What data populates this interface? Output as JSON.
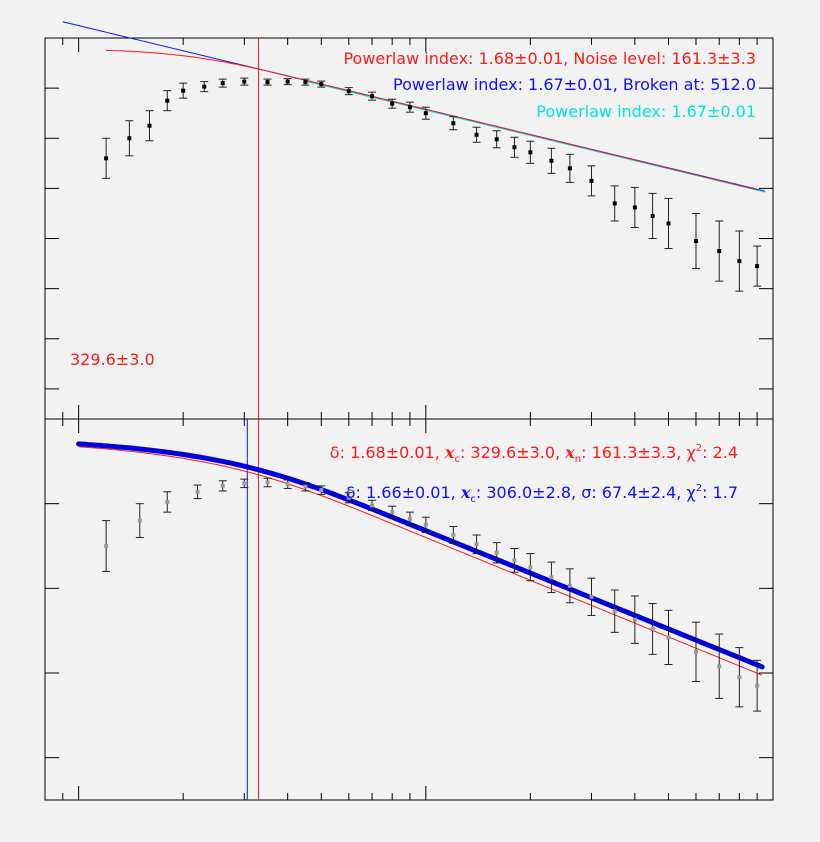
{
  "colors": {
    "background": "#f2f2f2",
    "axes": "#000000",
    "red": "#ff1a1a",
    "blue": "#1010ff",
    "cyan": "#00e6e6",
    "thick_blue": "#0000dd",
    "data_gray": "#9a9a9a"
  },
  "chart_data": [
    {
      "type": "scatter",
      "panel": "top",
      "scale": "log-log",
      "axis_labels_printed": false,
      "x_range": [
        80,
        10000
      ],
      "log10_y_range": [
        -8.6,
        -1.0
      ],
      "annotations": {
        "red_fit": "Powerlaw index: 1.68±0.01, Noise level: 161.3±3.3",
        "blue_fit": "Powerlaw index: 1.67±0.01, Broken at: 512.0",
        "cyan_fit": "Powerlaw index: 1.67±0.01",
        "cutoff_label": "329.6±3.0"
      },
      "cutoff_x": 329.6,
      "fits": {
        "red": {
          "index": 1.68,
          "noise_level": 161.3
        },
        "blue": {
          "index": 1.67,
          "broken_at": 512.0
        },
        "cyan": {
          "index": 1.67
        }
      },
      "data_points": [
        {
          "x": 120,
          "log10_y": -3.4,
          "err": 0.4
        },
        {
          "x": 140,
          "log10_y": -3.0,
          "err": 0.35
        },
        {
          "x": 160,
          "log10_y": -2.75,
          "err": 0.3
        },
        {
          "x": 180,
          "log10_y": -2.25,
          "err": 0.2
        },
        {
          "x": 200,
          "log10_y": -2.05,
          "err": 0.15
        },
        {
          "x": 230,
          "log10_y": -1.97,
          "err": 0.1
        },
        {
          "x": 260,
          "log10_y": -1.9,
          "err": 0.08
        },
        {
          "x": 300,
          "log10_y": -1.87,
          "err": 0.07
        },
        {
          "x": 350,
          "log10_y": -1.88,
          "err": 0.06
        },
        {
          "x": 400,
          "log10_y": -1.87,
          "err": 0.06
        },
        {
          "x": 450,
          "log10_y": -1.88,
          "err": 0.06
        },
        {
          "x": 500,
          "log10_y": -1.92,
          "err": 0.06
        },
        {
          "x": 600,
          "log10_y": -2.06,
          "err": 0.07
        },
        {
          "x": 700,
          "log10_y": -2.16,
          "err": 0.08
        },
        {
          "x": 800,
          "log10_y": -2.31,
          "err": 0.09
        },
        {
          "x": 900,
          "log10_y": -2.38,
          "err": 0.1
        },
        {
          "x": 1000,
          "log10_y": -2.5,
          "err": 0.12
        },
        {
          "x": 1200,
          "log10_y": -2.7,
          "err": 0.13
        },
        {
          "x": 1400,
          "log10_y": -2.93,
          "err": 0.15
        },
        {
          "x": 1600,
          "log10_y": -3.02,
          "err": 0.17
        },
        {
          "x": 1800,
          "log10_y": -3.18,
          "err": 0.2
        },
        {
          "x": 2000,
          "log10_y": -3.28,
          "err": 0.22
        },
        {
          "x": 2300,
          "log10_y": -3.45,
          "err": 0.25
        },
        {
          "x": 2600,
          "log10_y": -3.6,
          "err": 0.28
        },
        {
          "x": 3000,
          "log10_y": -3.85,
          "err": 0.3
        },
        {
          "x": 3500,
          "log10_y": -4.3,
          "err": 0.35
        },
        {
          "x": 4000,
          "log10_y": -4.38,
          "err": 0.4
        },
        {
          "x": 4500,
          "log10_y": -4.55,
          "err": 0.45
        },
        {
          "x": 5000,
          "log10_y": -4.7,
          "err": 0.5
        },
        {
          "x": 6000,
          "log10_y": -5.05,
          "err": 0.55
        },
        {
          "x": 7000,
          "log10_y": -5.25,
          "err": 0.6
        },
        {
          "x": 8000,
          "log10_y": -5.45,
          "err": 0.6
        },
        {
          "x": 9000,
          "log10_y": -5.55,
          "err": 0.4
        }
      ]
    },
    {
      "type": "scatter",
      "panel": "bottom",
      "scale": "log-log",
      "axis_labels_printed": false,
      "x_range": [
        80,
        10000
      ],
      "log10_y_range": [
        -5.5,
        -1.0
      ],
      "annotations": {
        "red_fit": "δ: 1.68±0.01, xc: 329.6±3.0, xn: 161.3±3.3, χ²: 2.4",
        "blue_fit": "δ: 1.66±0.01, xc: 306.0±2.8, σ:  67.4±2.4, χ²: 1.7"
      },
      "red_fit_parts": {
        "delta": "δ: 1.68±0.01, ",
        "xc_symbol": "x",
        "xc_sub": "c",
        "xc_value": ": 329.6±3.0, ",
        "xn_symbol": "x",
        "xn_sub": "n",
        "xn_value": ": 161.3±3.3, ",
        "chi_symbol": "χ",
        "chi_sup": "2",
        "chi_value": ": 2.4"
      },
      "blue_fit_parts": {
        "delta": "δ: 1.66±0.01, ",
        "xc_symbol": "x",
        "xc_sub": "c",
        "xc_value": ": 306.0±2.8, ",
        "sigma": "σ:  67.4±2.4, ",
        "chi_symbol": "χ",
        "chi_sup": "2",
        "chi_value": ": 1.7"
      },
      "cutoff_x_red": 329.6,
      "cutoff_x_blue": 306.0,
      "fits": {
        "red": {
          "delta": 1.68,
          "xc": 329.6,
          "xn": 161.3,
          "chi2": 2.4
        },
        "blue": {
          "delta": 1.66,
          "xc": 306.0,
          "sigma": 67.4,
          "chi2": 1.7
        }
      },
      "data_points": [
        {
          "x": 120,
          "log10_y": -2.5,
          "err": 0.3
        },
        {
          "x": 150,
          "log10_y": -2.2,
          "err": 0.2
        },
        {
          "x": 180,
          "log10_y": -1.98,
          "err": 0.12
        },
        {
          "x": 220,
          "log10_y": -1.86,
          "err": 0.08
        },
        {
          "x": 260,
          "log10_y": -1.79,
          "err": 0.06
        },
        {
          "x": 300,
          "log10_y": -1.76,
          "err": 0.05
        },
        {
          "x": 350,
          "log10_y": -1.75,
          "err": 0.05
        },
        {
          "x": 400,
          "log10_y": -1.77,
          "err": 0.05
        },
        {
          "x": 450,
          "log10_y": -1.8,
          "err": 0.05
        },
        {
          "x": 500,
          "log10_y": -1.84,
          "err": 0.05
        },
        {
          "x": 600,
          "log10_y": -1.93,
          "err": 0.06
        },
        {
          "x": 700,
          "log10_y": -2.02,
          "err": 0.06
        },
        {
          "x": 800,
          "log10_y": -2.1,
          "err": 0.07
        },
        {
          "x": 900,
          "log10_y": -2.18,
          "err": 0.08
        },
        {
          "x": 1000,
          "log10_y": -2.25,
          "err": 0.09
        },
        {
          "x": 1200,
          "log10_y": -2.37,
          "err": 0.1
        },
        {
          "x": 1400,
          "log10_y": -2.48,
          "err": 0.11
        },
        {
          "x": 1600,
          "log10_y": -2.58,
          "err": 0.12
        },
        {
          "x": 1800,
          "log10_y": -2.67,
          "err": 0.14
        },
        {
          "x": 2000,
          "log10_y": -2.75,
          "err": 0.16
        },
        {
          "x": 2300,
          "log10_y": -2.87,
          "err": 0.18
        },
        {
          "x": 2600,
          "log10_y": -2.97,
          "err": 0.2
        },
        {
          "x": 3000,
          "log10_y": -3.1,
          "err": 0.22
        },
        {
          "x": 3500,
          "log10_y": -3.27,
          "err": 0.25
        },
        {
          "x": 4000,
          "log10_y": -3.37,
          "err": 0.28
        },
        {
          "x": 4500,
          "log10_y": -3.48,
          "err": 0.3
        },
        {
          "x": 5000,
          "log10_y": -3.58,
          "err": 0.32
        },
        {
          "x": 6000,
          "log10_y": -3.75,
          "err": 0.35
        },
        {
          "x": 7000,
          "log10_y": -3.92,
          "err": 0.38
        },
        {
          "x": 8000,
          "log10_y": -4.05,
          "err": 0.35
        },
        {
          "x": 9000,
          "log10_y": -4.15,
          "err": 0.3
        }
      ]
    }
  ]
}
